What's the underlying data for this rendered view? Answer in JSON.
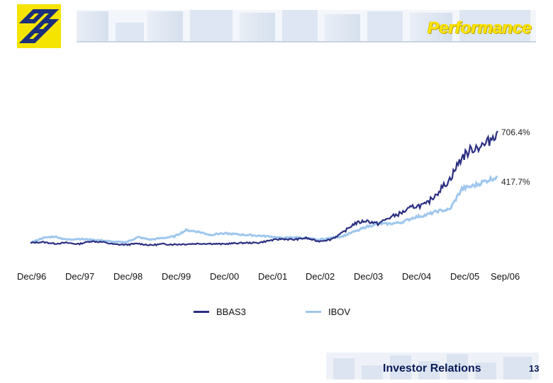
{
  "header": {
    "title": "Performance",
    "logo_icon": "banco-do-brasil-logo-icon",
    "logo_color": "#f5e400",
    "logo_mark_color": "#1c2f7a"
  },
  "footer": {
    "label": "Investor Relations",
    "page_number": "13"
  },
  "chart_data": {
    "type": "line",
    "title": "",
    "xlabel": "",
    "ylabel": "",
    "categories": [
      "Dec/96",
      "Dec/97",
      "Dec/98",
      "Dec/99",
      "Dec/00",
      "Dec/01",
      "Dec/02",
      "Dec/03",
      "Dec/04",
      "Dec/05",
      "Sep/06"
    ],
    "x_ticks": [
      "Dec/96",
      "Dec/97",
      "Dec/98",
      "Dec/99",
      "Dec/00",
      "Dec/01",
      "Dec/02",
      "Dec/03",
      "Dec/04",
      "Dec/05",
      "Sep/06"
    ],
    "x_numeric": [
      0,
      1,
      2,
      3,
      4,
      5,
      6,
      7,
      8,
      9,
      9.75
    ],
    "ylim": [
      -20,
      760
    ],
    "grid": false,
    "legend": "bottom",
    "series": [
      {
        "name": "BBAS3",
        "color": "#2b2f80",
        "end_label": "706.4%",
        "x": [
          0,
          0.25,
          0.5,
          0.75,
          1,
          1.25,
          1.5,
          1.75,
          2,
          2.25,
          2.5,
          2.75,
          3,
          3.25,
          3.5,
          3.75,
          4,
          4.25,
          4.5,
          4.75,
          5,
          5.25,
          5.5,
          5.75,
          6,
          6.25,
          6.5,
          6.75,
          7,
          7.25,
          7.5,
          7.75,
          8,
          8.25,
          8.5,
          8.75,
          9,
          9.25,
          9.5,
          9.75
        ],
        "y": [
          0,
          5,
          -5,
          0,
          -8,
          10,
          5,
          -10,
          -12,
          -5,
          -15,
          -8,
          -10,
          -8,
          -5,
          -5,
          -8,
          -3,
          0,
          0,
          15,
          25,
          20,
          30,
          10,
          20,
          60,
          120,
          140,
          120,
          160,
          190,
          230,
          240,
          320,
          400,
          540,
          600,
          620,
          706
        ]
      },
      {
        "name": "IBOV",
        "color": "#9fc7ee",
        "end_label": "417.7%",
        "x": [
          0,
          0.25,
          0.5,
          0.75,
          1,
          1.25,
          1.5,
          1.75,
          2,
          2.25,
          2.5,
          2.75,
          3,
          3.25,
          3.5,
          3.75,
          4,
          4.25,
          4.5,
          4.75,
          5,
          5.25,
          5.5,
          5.75,
          6,
          6.25,
          6.5,
          6.75,
          7,
          7.25,
          7.5,
          7.75,
          8,
          8.25,
          8.5,
          8.75,
          9,
          9.25,
          9.5,
          9.75
        ],
        "y": [
          0,
          30,
          40,
          20,
          25,
          20,
          15,
          5,
          5,
          35,
          20,
          30,
          40,
          80,
          70,
          50,
          60,
          55,
          50,
          45,
          40,
          30,
          35,
          30,
          20,
          30,
          40,
          70,
          100,
          120,
          120,
          130,
          160,
          175,
          200,
          210,
          340,
          360,
          390,
          418
        ]
      }
    ]
  }
}
